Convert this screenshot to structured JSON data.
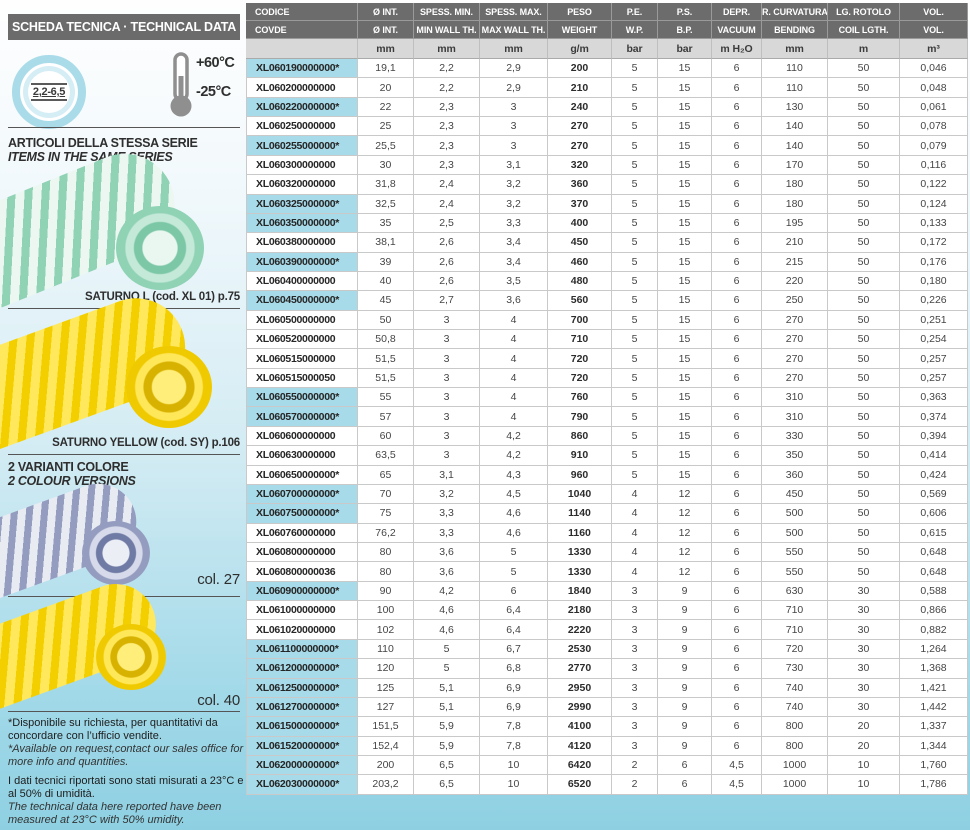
{
  "sidebar": {
    "title": "SCHEDA TECNICA · TECHNICAL DATA",
    "badge": "2,2-6,5",
    "temp_max": "+60°C",
    "temp_min": "-25°C",
    "series_heading_it": "ARTICOLI DELLA STESSA SERIE",
    "series_heading_en": "ITEMS IN THE SAME SERIES",
    "product1_caption": "SATURNO L  (cod. XL 01) p.75",
    "product2_caption": "SATURNO YELLOW  (cod. SY) p.106",
    "variants_heading_it": "2 VARIANTI COLORE",
    "variants_heading_en": "2 COLOUR VERSIONS",
    "variant1_caption": "col. 27",
    "variant2_caption": "col. 40",
    "footnote_it": "*Disponibile su richiesta, per quantitativi da concordare con l’ufficio vendite.",
    "footnote_en": "*Available on request,contact our sales office for more info and quantities.",
    "note_it": "I dati tecnici riportati sono stati misurati a 23°C e al 50% di umidità.",
    "note_en": "The technical data here reported have been measured at 23°C with 50% umidity.",
    "colors": {
      "accent_cyan": "#a7dbe9",
      "header_gray": "#6b6b6b",
      "hose_green": "#8fd2b4",
      "hose_yellow": "#f4cf00",
      "hose_gray": "#949dc0"
    }
  },
  "table": {
    "header_row1": [
      "CODICE",
      "Ø INT.",
      "SPESS. MIN.",
      "SPESS. MAX.",
      "PESO",
      "P.E.",
      "P.S.",
      "DEPR.",
      "R. CURVATURA",
      "LG. ROTOLO",
      "VOL."
    ],
    "header_row2": [
      "COVDE",
      "Ø INT.",
      "MIN WALL TH.",
      "MAX WALL TH.",
      "WEIGHT",
      "W.P.",
      "B.P.",
      "VACUUM",
      "BENDING",
      "COIL LGTH.",
      "VOL."
    ],
    "units": [
      "",
      "mm",
      "mm",
      "mm",
      "g/m",
      "bar",
      "bar",
      "m H₂O",
      "mm",
      "m",
      "m³"
    ],
    "rows": [
      {
        "code": "XL060190000000*",
        "highlight": true,
        "values": [
          "19,1",
          "2,2",
          "2,9",
          "200",
          "5",
          "15",
          "6",
          "110",
          "50",
          "0,046"
        ]
      },
      {
        "code": "XL060200000000",
        "highlight": false,
        "values": [
          "20",
          "2,2",
          "2,9",
          "210",
          "5",
          "15",
          "6",
          "110",
          "50",
          "0,048"
        ]
      },
      {
        "code": "XL060220000000*",
        "highlight": true,
        "values": [
          "22",
          "2,3",
          "3",
          "240",
          "5",
          "15",
          "6",
          "130",
          "50",
          "0,061"
        ]
      },
      {
        "code": "XL060250000000",
        "highlight": false,
        "values": [
          "25",
          "2,3",
          "3",
          "270",
          "5",
          "15",
          "6",
          "140",
          "50",
          "0,078"
        ]
      },
      {
        "code": "XL060255000000*",
        "highlight": true,
        "values": [
          "25,5",
          "2,3",
          "3",
          "270",
          "5",
          "15",
          "6",
          "140",
          "50",
          "0,079"
        ]
      },
      {
        "code": "XL060300000000",
        "highlight": false,
        "values": [
          "30",
          "2,3",
          "3,1",
          "320",
          "5",
          "15",
          "6",
          "170",
          "50",
          "0,116"
        ]
      },
      {
        "code": "XL060320000000",
        "highlight": false,
        "values": [
          "31,8",
          "2,4",
          "3,2",
          "360",
          "5",
          "15",
          "6",
          "180",
          "50",
          "0,122"
        ]
      },
      {
        "code": "XL060325000000*",
        "highlight": true,
        "values": [
          "32,5",
          "2,4",
          "3,2",
          "370",
          "5",
          "15",
          "6",
          "180",
          "50",
          "0,124"
        ]
      },
      {
        "code": "XL060350000000*",
        "highlight": true,
        "values": [
          "35",
          "2,5",
          "3,3",
          "400",
          "5",
          "15",
          "6",
          "195",
          "50",
          "0,133"
        ]
      },
      {
        "code": "XL060380000000",
        "highlight": false,
        "values": [
          "38,1",
          "2,6",
          "3,4",
          "450",
          "5",
          "15",
          "6",
          "210",
          "50",
          "0,172"
        ]
      },
      {
        "code": "XL060390000000*",
        "highlight": true,
        "values": [
          "39",
          "2,6",
          "3,4",
          "460",
          "5",
          "15",
          "6",
          "215",
          "50",
          "0,176"
        ]
      },
      {
        "code": "XL060400000000",
        "highlight": false,
        "values": [
          "40",
          "2,6",
          "3,5",
          "480",
          "5",
          "15",
          "6",
          "220",
          "50",
          "0,180"
        ]
      },
      {
        "code": "XL060450000000*",
        "highlight": true,
        "values": [
          "45",
          "2,7",
          "3,6",
          "560",
          "5",
          "15",
          "6",
          "250",
          "50",
          "0,226"
        ]
      },
      {
        "code": "XL060500000000",
        "highlight": false,
        "values": [
          "50",
          "3",
          "4",
          "700",
          "5",
          "15",
          "6",
          "270",
          "50",
          "0,251"
        ]
      },
      {
        "code": "XL060520000000",
        "highlight": false,
        "values": [
          "50,8",
          "3",
          "4",
          "710",
          "5",
          "15",
          "6",
          "270",
          "50",
          "0,254"
        ]
      },
      {
        "code": "XL060515000000",
        "highlight": false,
        "values": [
          "51,5",
          "3",
          "4",
          "720",
          "5",
          "15",
          "6",
          "270",
          "50",
          "0,257"
        ]
      },
      {
        "code": "XL060515000050",
        "highlight": false,
        "values": [
          "51,5",
          "3",
          "4",
          "720",
          "5",
          "15",
          "6",
          "270",
          "50",
          "0,257"
        ]
      },
      {
        "code": "XL060550000000*",
        "highlight": true,
        "values": [
          "55",
          "3",
          "4",
          "760",
          "5",
          "15",
          "6",
          "310",
          "50",
          "0,363"
        ]
      },
      {
        "code": "XL060570000000*",
        "highlight": true,
        "values": [
          "57",
          "3",
          "4",
          "790",
          "5",
          "15",
          "6",
          "310",
          "50",
          "0,374"
        ]
      },
      {
        "code": "XL060600000000",
        "highlight": false,
        "values": [
          "60",
          "3",
          "4,2",
          "860",
          "5",
          "15",
          "6",
          "330",
          "50",
          "0,394"
        ]
      },
      {
        "code": "XL060630000000",
        "highlight": false,
        "values": [
          "63,5",
          "3",
          "4,2",
          "910",
          "5",
          "15",
          "6",
          "350",
          "50",
          "0,414"
        ]
      },
      {
        "code": "XL060650000000*",
        "highlight": false,
        "values": [
          "65",
          "3,1",
          "4,3",
          "960",
          "5",
          "15",
          "6",
          "360",
          "50",
          "0,424"
        ]
      },
      {
        "code": "XL060700000000*",
        "highlight": true,
        "values": [
          "70",
          "3,2",
          "4,5",
          "1040",
          "4",
          "12",
          "6",
          "450",
          "50",
          "0,569"
        ]
      },
      {
        "code": "XL060750000000*",
        "highlight": true,
        "values": [
          "75",
          "3,3",
          "4,6",
          "1140",
          "4",
          "12",
          "6",
          "500",
          "50",
          "0,606"
        ]
      },
      {
        "code": "XL060760000000",
        "highlight": false,
        "values": [
          "76,2",
          "3,3",
          "4,6",
          "1160",
          "4",
          "12",
          "6",
          "500",
          "50",
          "0,615"
        ]
      },
      {
        "code": "XL060800000000",
        "highlight": false,
        "values": [
          "80",
          "3,6",
          "5",
          "1330",
          "4",
          "12",
          "6",
          "550",
          "50",
          "0,648"
        ]
      },
      {
        "code": "XL060800000036",
        "highlight": false,
        "values": [
          "80",
          "3,6",
          "5",
          "1330",
          "4",
          "12",
          "6",
          "550",
          "50",
          "0,648"
        ]
      },
      {
        "code": "XL060900000000*",
        "highlight": true,
        "values": [
          "90",
          "4,2",
          "6",
          "1840",
          "3",
          "9",
          "6",
          "630",
          "30",
          "0,588"
        ]
      },
      {
        "code": "XL061000000000",
        "highlight": false,
        "values": [
          "100",
          "4,6",
          "6,4",
          "2180",
          "3",
          "9",
          "6",
          "710",
          "30",
          "0,866"
        ]
      },
      {
        "code": "XL061020000000",
        "highlight": false,
        "values": [
          "102",
          "4,6",
          "6,4",
          "2220",
          "3",
          "9",
          "6",
          "710",
          "30",
          "0,882"
        ]
      },
      {
        "code": "XL061100000000*",
        "highlight": true,
        "values": [
          "110",
          "5",
          "6,7",
          "2530",
          "3",
          "9",
          "6",
          "720",
          "30",
          "1,264"
        ]
      },
      {
        "code": "XL061200000000*",
        "highlight": true,
        "values": [
          "120",
          "5",
          "6,8",
          "2770",
          "3",
          "9",
          "6",
          "730",
          "30",
          "1,368"
        ]
      },
      {
        "code": "XL061250000000*",
        "highlight": true,
        "values": [
          "125",
          "5,1",
          "6,9",
          "2950",
          "3",
          "9",
          "6",
          "740",
          "30",
          "1,421"
        ]
      },
      {
        "code": "XL061270000000*",
        "highlight": true,
        "values": [
          "127",
          "5,1",
          "6,9",
          "2990",
          "3",
          "9",
          "6",
          "740",
          "30",
          "1,442"
        ]
      },
      {
        "code": "XL061500000000*",
        "highlight": true,
        "values": [
          "151,5",
          "5,9",
          "7,8",
          "4100",
          "3",
          "9",
          "6",
          "800",
          "20",
          "1,337"
        ]
      },
      {
        "code": "XL061520000000*",
        "highlight": true,
        "values": [
          "152,4",
          "5,9",
          "7,8",
          "4120",
          "3",
          "9",
          "6",
          "800",
          "20",
          "1,344"
        ]
      },
      {
        "code": "XL062000000000*",
        "highlight": true,
        "values": [
          "200",
          "6,5",
          "10",
          "6420",
          "2",
          "6",
          "4,5",
          "1000",
          "10",
          "1,760"
        ]
      },
      {
        "code": "XL062030000000*",
        "highlight": true,
        "values": [
          "203,2",
          "6,5",
          "10",
          "6520",
          "2",
          "6",
          "4,5",
          "1000",
          "10",
          "1,786"
        ]
      }
    ]
  }
}
